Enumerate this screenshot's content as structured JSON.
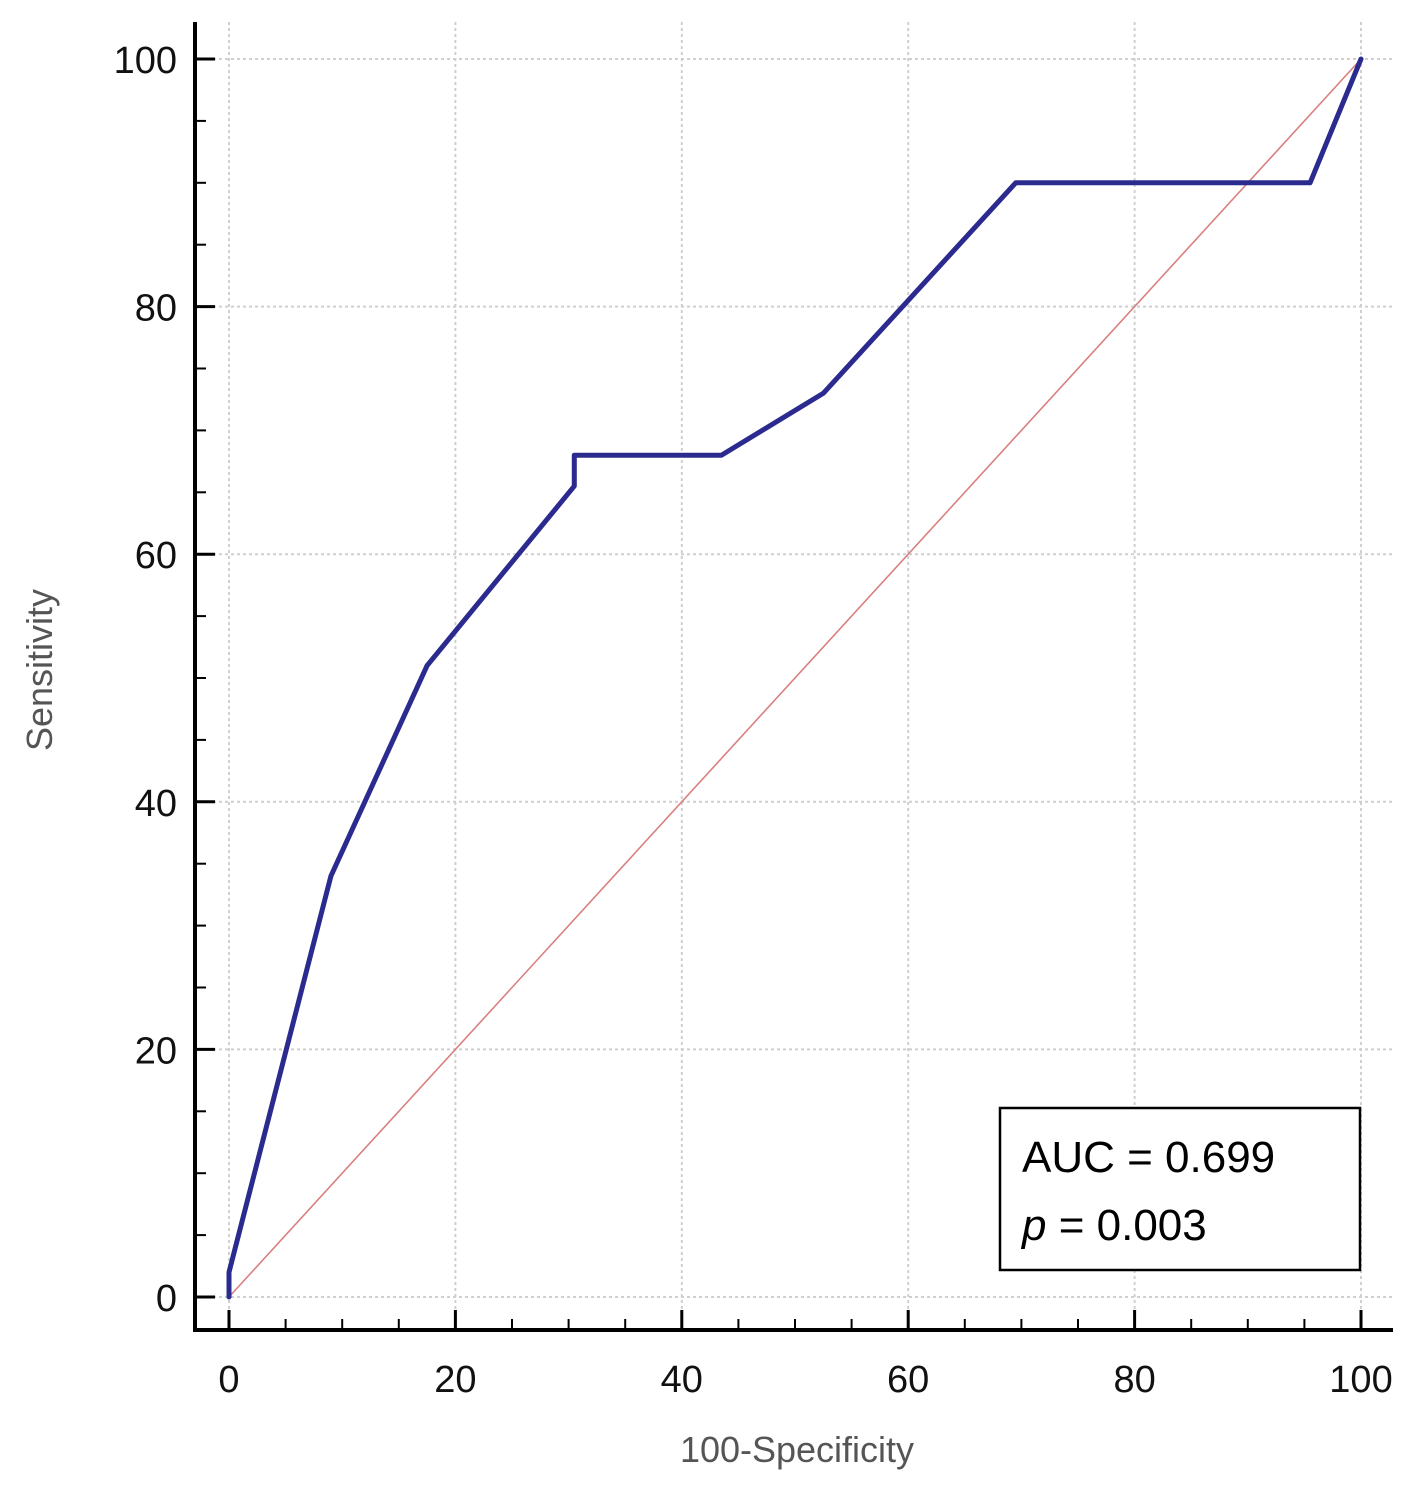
{
  "chart_data": {
    "type": "line",
    "title": "",
    "xlabel": "100-Specificity",
    "ylabel": "Sensitivity",
    "xlim": [
      0,
      100
    ],
    "ylim": [
      0,
      100
    ],
    "xticks": [
      0,
      20,
      40,
      60,
      80,
      100
    ],
    "yticks": [
      0,
      20,
      40,
      60,
      80,
      100
    ],
    "grid": true,
    "series": [
      {
        "x": [
          0,
          0,
          9,
          17.5,
          30.5,
          30.5,
          43.5,
          52.5,
          69.5,
          95.5,
          100
        ],
        "y": [
          0,
          2,
          34,
          51,
          65.5,
          68,
          68,
          73,
          90,
          90,
          100
        ],
        "color": "#2b2b8f"
      },
      {
        "x": [
          0,
          100
        ],
        "y": [
          0,
          100
        ],
        "color": "#d98080"
      }
    ],
    "annotation": {
      "auc_text": "AUC = 0.699",
      "p_symbol": "p",
      "p_rest": " = 0.003"
    }
  }
}
